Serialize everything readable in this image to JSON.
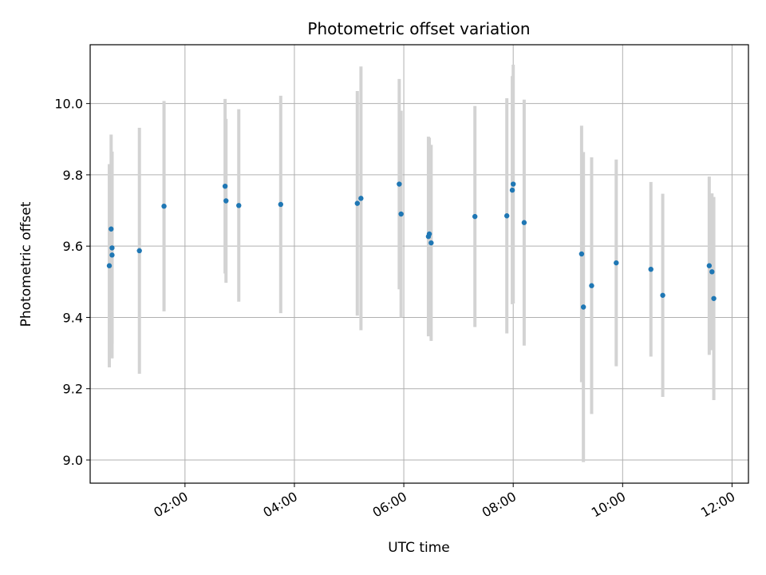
{
  "chart_data": {
    "type": "scatter",
    "title": "Photometric offset variation",
    "xlabel": "UTC time",
    "ylabel": "Photometric offset",
    "xlim": [
      "00:16",
      "12:18"
    ],
    "ylim": [
      8.935,
      10.165
    ],
    "x_ticks": [
      "02:00",
      "04:00",
      "06:00",
      "08:00",
      "10:00",
      "12:00"
    ],
    "y_ticks": [
      9.0,
      9.2,
      9.4,
      9.6,
      9.8,
      10.0
    ],
    "grid": true,
    "colors": {
      "point": "#1f77b4",
      "errorbar": "#d3d3d3",
      "grid": "#b0b0b0"
    },
    "points": [
      {
        "x": "00:37",
        "y": 9.545,
        "yerr": 0.285
      },
      {
        "x": "00:39",
        "y": 9.648,
        "yerr": 0.265
      },
      {
        "x": "00:40",
        "y": 9.595,
        "yerr": 0.27
      },
      {
        "x": "00:40",
        "y": 9.575,
        "yerr": 0.29
      },
      {
        "x": "01:10",
        "y": 9.587,
        "yerr": 0.345
      },
      {
        "x": "01:37",
        "y": 9.712,
        "yerr": 0.295
      },
      {
        "x": "02:44",
        "y": 9.768,
        "yerr": 0.245
      },
      {
        "x": "02:45",
        "y": 9.727,
        "yerr": 0.23
      },
      {
        "x": "02:59",
        "y": 9.714,
        "yerr": 0.27
      },
      {
        "x": "03:45",
        "y": 9.717,
        "yerr": 0.305
      },
      {
        "x": "05:09",
        "y": 9.72,
        "yerr": 0.315
      },
      {
        "x": "05:13",
        "y": 9.734,
        "yerr": 0.37
      },
      {
        "x": "05:55",
        "y": 9.774,
        "yerr": 0.295
      },
      {
        "x": "05:57",
        "y": 9.69,
        "yerr": 0.29
      },
      {
        "x": "06:27",
        "y": 9.627,
        "yerr": 0.28
      },
      {
        "x": "06:28",
        "y": 9.634,
        "yerr": 0.27
      },
      {
        "x": "06:30",
        "y": 9.609,
        "yerr": 0.275
      },
      {
        "x": "07:18",
        "y": 9.683,
        "yerr": 0.31
      },
      {
        "x": "07:53",
        "y": 9.685,
        "yerr": 0.33
      },
      {
        "x": "07:59",
        "y": 9.757,
        "yerr": 0.32
      },
      {
        "x": "08:00",
        "y": 9.774,
        "yerr": 0.335
      },
      {
        "x": "08:12",
        "y": 9.666,
        "yerr": 0.345
      },
      {
        "x": "09:15",
        "y": 9.578,
        "yerr": 0.36
      },
      {
        "x": "09:17",
        "y": 9.429,
        "yerr": 0.435
      },
      {
        "x": "09:26",
        "y": 9.489,
        "yerr": 0.36
      },
      {
        "x": "09:53",
        "y": 9.553,
        "yerr": 0.29
      },
      {
        "x": "10:31",
        "y": 9.535,
        "yerr": 0.245
      },
      {
        "x": "10:44",
        "y": 9.462,
        "yerr": 0.285
      },
      {
        "x": "11:35",
        "y": 9.545,
        "yerr": 0.25
      },
      {
        "x": "11:38",
        "y": 9.528,
        "yerr": 0.22
      },
      {
        "x": "11:40",
        "y": 9.453,
        "yerr": 0.285
      }
    ]
  }
}
